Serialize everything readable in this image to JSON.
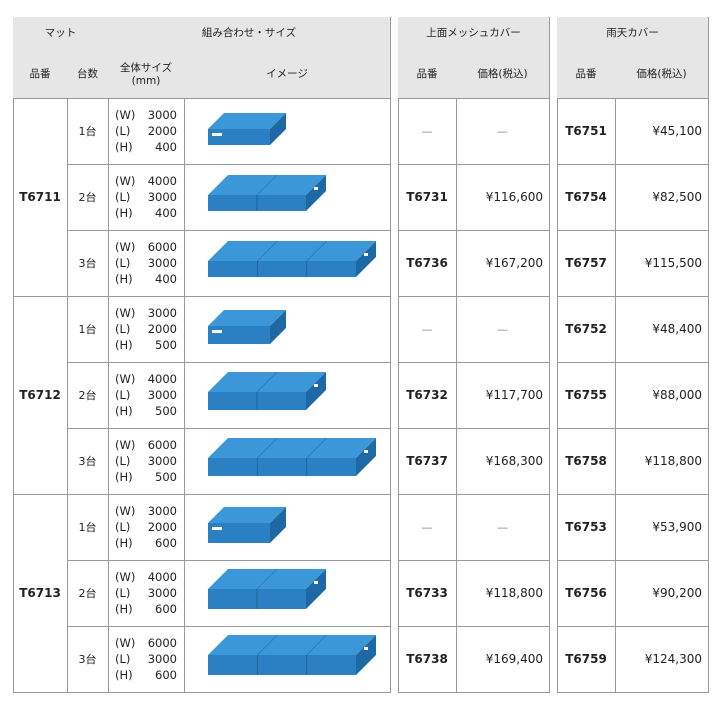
{
  "main": {
    "group_headers": [
      "マット",
      "組み合わせ・サイズ"
    ],
    "columns": [
      "品番",
      "台数",
      "全体サイズ",
      "(mm)",
      "イメージ"
    ],
    "mats": [
      {
        "code": "T6711",
        "rows": [
          {
            "count": "1台",
            "size": [
              [
                "(W)",
                "3000"
              ],
              [
                "(L)",
                "2000"
              ],
              [
                "(H)",
                "400"
              ]
            ]
          },
          {
            "count": "2台",
            "size": [
              [
                "(W)",
                "4000"
              ],
              [
                "(L)",
                "3000"
              ],
              [
                "(H)",
                "400"
              ]
            ]
          },
          {
            "count": "3台",
            "size": [
              [
                "(W)",
                "6000"
              ],
              [
                "(L)",
                "3000"
              ],
              [
                "(H)",
                "400"
              ]
            ]
          }
        ]
      },
      {
        "code": "T6712",
        "rows": [
          {
            "count": "1台",
            "size": [
              [
                "(W)",
                "3000"
              ],
              [
                "(L)",
                "2000"
              ],
              [
                "(H)",
                "500"
              ]
            ]
          },
          {
            "count": "2台",
            "size": [
              [
                "(W)",
                "4000"
              ],
              [
                "(L)",
                "3000"
              ],
              [
                "(H)",
                "500"
              ]
            ]
          },
          {
            "count": "3台",
            "size": [
              [
                "(W)",
                "6000"
              ],
              [
                "(L)",
                "3000"
              ],
              [
                "(H)",
                "500"
              ]
            ]
          }
        ]
      },
      {
        "code": "T6713",
        "rows": [
          {
            "count": "1台",
            "size": [
              [
                "(W)",
                "3000"
              ],
              [
                "(L)",
                "2000"
              ],
              [
                "(H)",
                "600"
              ]
            ]
          },
          {
            "count": "2台",
            "size": [
              [
                "(W)",
                "4000"
              ],
              [
                "(L)",
                "3000"
              ],
              [
                "(H)",
                "600"
              ]
            ]
          },
          {
            "count": "3台",
            "size": [
              [
                "(W)",
                "6000"
              ],
              [
                "(L)",
                "3000"
              ],
              [
                "(H)",
                "600"
              ]
            ]
          }
        ]
      }
    ]
  },
  "mesh_cover": {
    "title": "上面メッシュカバー",
    "columns": [
      "品番",
      "価格(税込)"
    ],
    "rows": [
      [
        "—",
        "—"
      ],
      [
        "T6731",
        "¥116,600"
      ],
      [
        "T6736",
        "¥167,200"
      ],
      [
        "—",
        "—"
      ],
      [
        "T6732",
        "¥117,700"
      ],
      [
        "T6737",
        "¥168,300"
      ],
      [
        "—",
        "—"
      ],
      [
        "T6733",
        "¥118,800"
      ],
      [
        "T6738",
        "¥169,400"
      ]
    ]
  },
  "rain_cover": {
    "title": "雨天カバー",
    "columns": [
      "品番",
      "価格(税込)"
    ],
    "rows": [
      [
        "T6751",
        "¥45,100"
      ],
      [
        "T6754",
        "¥82,500"
      ],
      [
        "T6757",
        "¥115,500"
      ],
      [
        "T6752",
        "¥48,400"
      ],
      [
        "T6755",
        "¥88,000"
      ],
      [
        "T6758",
        "¥118,800"
      ],
      [
        "T6753",
        "¥53,900"
      ],
      [
        "T6756",
        "¥90,200"
      ],
      [
        "T6759",
        "¥124,300"
      ]
    ]
  }
}
